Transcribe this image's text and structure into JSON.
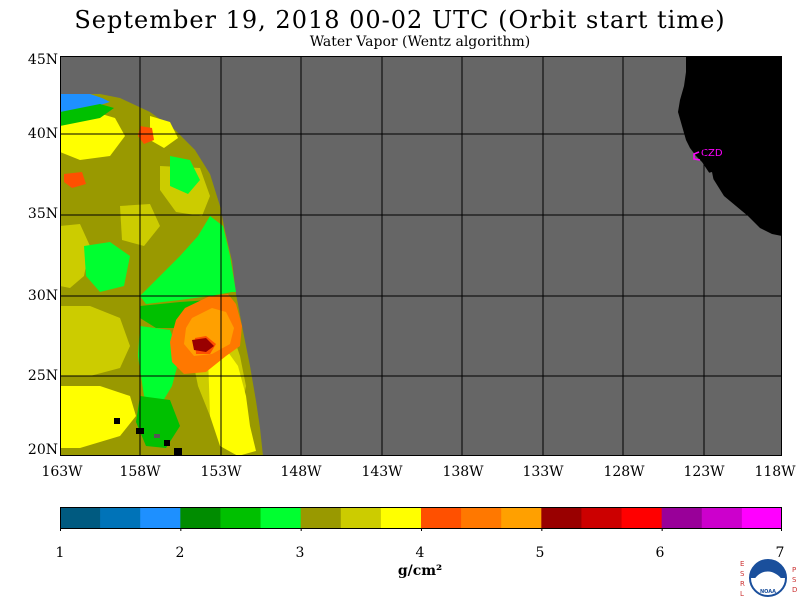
{
  "header": {
    "title": "September 19, 2018  00-02 UTC  (Orbit start time)",
    "subtitle": "Water Vapor (Wentz algorithm)"
  },
  "map": {
    "lat_ticks": [
      "45N",
      "40N",
      "35N",
      "30N",
      "25N",
      "20N"
    ],
    "lon_ticks": [
      "163W",
      "158W",
      "153W",
      "148W",
      "143W",
      "138W",
      "133W",
      "128W",
      "123W",
      "118W"
    ],
    "lat_range": [
      20,
      45
    ],
    "lon_range": [
      -163,
      -118
    ],
    "station_label": "CZD",
    "colors": {
      "no_data": "#666666",
      "land": "#000000",
      "grid": "#000000",
      "station": "#ff00ff"
    }
  },
  "colorbar": {
    "tick_labels": [
      "1",
      "2",
      "3",
      "4",
      "5",
      "6",
      "7"
    ],
    "unit": "g/cm²",
    "range": [
      1,
      7
    ],
    "colors": [
      "#005a80",
      "#0073b8",
      "#1e90ff",
      "#008c00",
      "#00c000",
      "#00ff30",
      "#999900",
      "#cccc00",
      "#ffff00",
      "#ff5000",
      "#ff7800",
      "#ffa000",
      "#990000",
      "#cc0000",
      "#ff0000",
      "#990099",
      "#cc00cc",
      "#ff00ff"
    ]
  },
  "logo": {
    "left_letters": "ESRL",
    "right_letters": "PSD",
    "center_text": "NOAA"
  }
}
